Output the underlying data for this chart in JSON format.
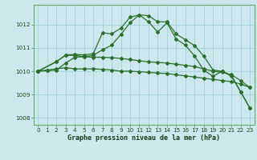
{
  "bg_color": "#cce8ec",
  "grid_color": "#99ccd4",
  "line_color_dark": "#2d6e2d",
  "xlabel": "Graphe pression niveau de la mer (hPa)",
  "ylim": [
    1007.7,
    1012.85
  ],
  "xlim": [
    -0.5,
    23.5
  ],
  "yticks": [
    1008,
    1009,
    1010,
    1011,
    1012
  ],
  "xticks": [
    0,
    1,
    2,
    3,
    4,
    5,
    6,
    7,
    8,
    9,
    10,
    11,
    12,
    13,
    14,
    15,
    16,
    17,
    18,
    19,
    20,
    21,
    22,
    23
  ],
  "series_flat1_x": [
    0,
    1,
    2,
    3,
    4,
    5,
    6,
    7,
    8,
    9,
    10,
    11,
    12,
    13,
    14,
    15,
    16,
    17,
    18,
    19,
    20,
    21,
    22,
    23
  ],
  "series_flat1_y": [
    1010.0,
    1010.05,
    1010.1,
    1010.15,
    1010.1,
    1010.1,
    1010.1,
    1010.08,
    1010.05,
    1010.0,
    1010.0,
    1009.98,
    1009.95,
    1009.92,
    1009.9,
    1009.85,
    1009.8,
    1009.75,
    1009.7,
    1009.65,
    1009.6,
    1009.55,
    1009.45,
    1009.3
  ],
  "series_flat2_x": [
    0,
    1,
    2,
    3,
    4,
    5,
    6,
    7,
    8,
    9,
    10,
    11,
    12,
    13,
    14,
    15,
    16,
    17,
    18,
    19,
    20,
    21,
    22,
    23
  ],
  "series_flat2_y": [
    1010.0,
    1010.02,
    1010.05,
    1010.35,
    1010.6,
    1010.62,
    1010.6,
    1010.6,
    1010.58,
    1010.55,
    1010.5,
    1010.45,
    1010.4,
    1010.38,
    1010.35,
    1010.3,
    1010.25,
    1010.2,
    1010.1,
    1010.0,
    1009.95,
    1009.85,
    1009.6,
    1009.3
  ],
  "series_peak1_x": [
    0,
    2,
    3,
    4,
    5,
    6,
    7,
    8,
    9,
    10,
    11,
    12,
    13,
    14,
    15,
    16,
    17,
    18,
    19,
    20,
    21,
    22,
    23
  ],
  "series_peak1_y": [
    1010.0,
    1010.4,
    1010.7,
    1010.72,
    1010.7,
    1010.75,
    1011.65,
    1011.6,
    1011.85,
    1012.32,
    1012.42,
    1012.38,
    1012.12,
    1012.12,
    1011.6,
    1011.35,
    1011.1,
    1010.65,
    1010.05,
    1010.0,
    1009.82,
    1009.12,
    1008.42
  ],
  "series_peak2_x": [
    0,
    2,
    3,
    4,
    5,
    6,
    7,
    8,
    9,
    10,
    11,
    12,
    13,
    14,
    15,
    16,
    17,
    18,
    19,
    20,
    21,
    22,
    23
  ],
  "series_peak2_y": [
    1010.0,
    1010.42,
    1010.68,
    1010.68,
    1010.62,
    1010.68,
    1010.92,
    1011.12,
    1011.58,
    1012.08,
    1012.42,
    1012.12,
    1011.68,
    1012.08,
    1011.38,
    1011.12,
    1010.65,
    1010.05,
    1009.78,
    1010.0,
    1009.78,
    1009.12,
    1008.42
  ]
}
